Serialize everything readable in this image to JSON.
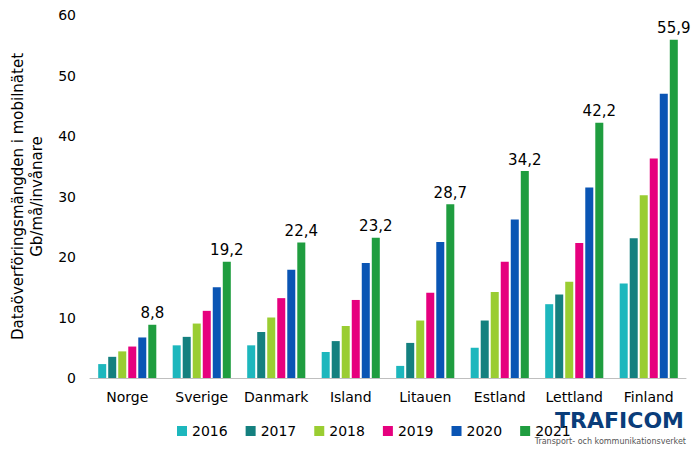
{
  "chart_data": {
    "type": "bar",
    "y_label": "Dataöverföringsmängden i mobilnätet\nGb/må/invånare",
    "categories": [
      "Norge",
      "Sverige",
      "Danmark",
      "Island",
      "Litauen",
      "Estland",
      "Lettland",
      "Finland"
    ],
    "series": [
      {
        "name": "2016",
        "color": "#1db7bd",
        "values": [
          2.3,
          5.4,
          5.4,
          4.3,
          2.0,
          5.0,
          12.2,
          15.6
        ]
      },
      {
        "name": "2017",
        "color": "#14807f",
        "values": [
          3.5,
          6.8,
          7.6,
          6.1,
          5.8,
          9.5,
          13.8,
          23.1
        ]
      },
      {
        "name": "2018",
        "color": "#9acd32",
        "values": [
          4.4,
          9.0,
          10.0,
          8.6,
          9.5,
          14.2,
          15.9,
          30.2
        ]
      },
      {
        "name": "2019",
        "color": "#e6007e",
        "values": [
          5.2,
          11.1,
          13.2,
          12.9,
          14.1,
          19.2,
          22.3,
          36.3
        ]
      },
      {
        "name": "2020",
        "color": "#0a55b4",
        "values": [
          6.7,
          15.0,
          17.9,
          19.0,
          22.5,
          26.2,
          31.5,
          47.0
        ]
      },
      {
        "name": "2021",
        "color": "#1f9d3f",
        "data_labels": true,
        "values": [
          8.8,
          19.2,
          22.4,
          23.2,
          28.7,
          34.2,
          42.2,
          55.9
        ],
        "value_labels": [
          "8,8",
          "19,2",
          "22,4",
          "23,2",
          "28,7",
          "34,2",
          "42,2",
          "55,9"
        ]
      }
    ],
    "ylim": [
      0,
      60
    ],
    "yticks": [
      0,
      10,
      20,
      30,
      40,
      50,
      60
    ],
    "grid": false,
    "legend": "bottom",
    "annotations": [
      "TRAFICOM",
      "Transport- och kommunikationsverket"
    ]
  }
}
